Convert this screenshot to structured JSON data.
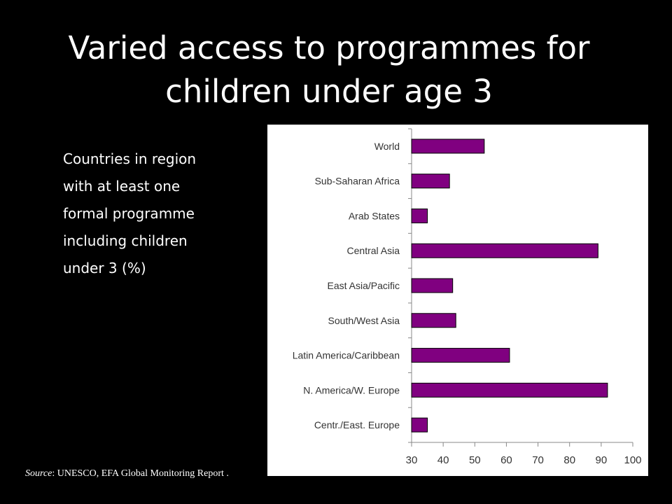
{
  "slide": {
    "title_line1": "Varied access to programmes for",
    "title_line2": "children under age 3",
    "description_lines": [
      "Countries in region",
      "with at least one",
      "formal programme",
      "including children",
      "under 3 (%)"
    ],
    "source_label": "Source",
    "source_text": ": UNESCO, EFA Global Monitoring Report ."
  },
  "chart_data": {
    "type": "bar",
    "orientation": "horizontal",
    "title": "",
    "xlabel": "",
    "ylabel": "",
    "categories": [
      "World",
      "Sub-Saharan Africa",
      "Arab States",
      "Central Asia",
      "East Asia/Pacific",
      "South/West Asia",
      "Latin America/Caribbean",
      "N. America/W. Europe",
      "Centr./East. Europe"
    ],
    "values": [
      53,
      42,
      35,
      89,
      43,
      44,
      61,
      92,
      35
    ],
    "xlim": [
      30,
      100
    ],
    "xticks": [
      30,
      40,
      50,
      60,
      70,
      80,
      90,
      100
    ],
    "grid": false,
    "legend": "none",
    "bar_color": "#800080",
    "bar_edge_color": "#000000"
  }
}
